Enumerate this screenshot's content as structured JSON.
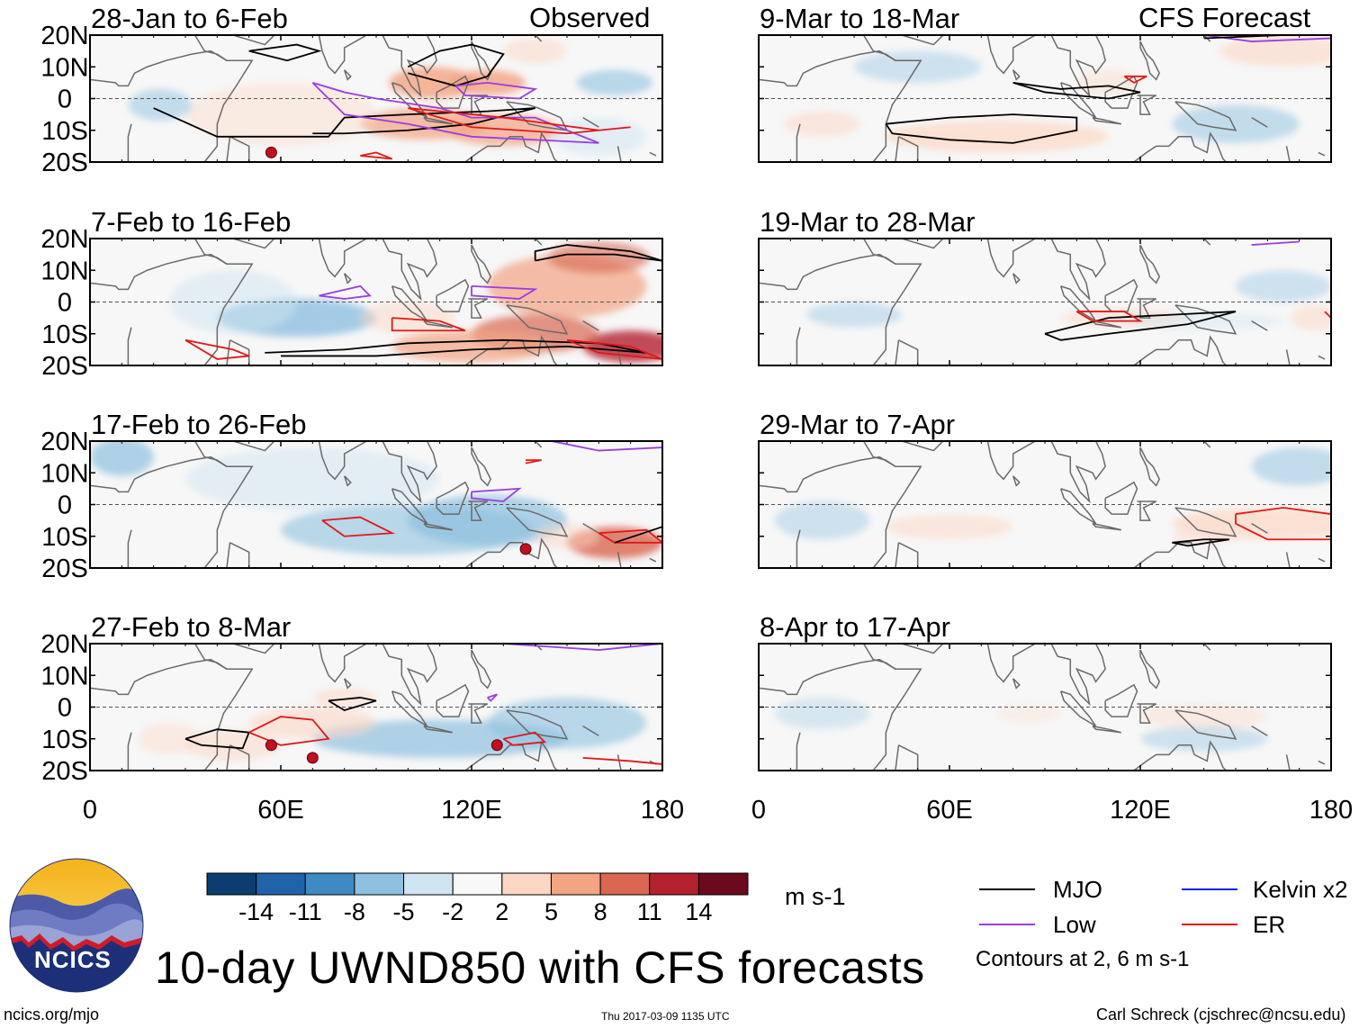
{
  "colors": {
    "mjo": "#000000",
    "low": "#9a3ee0",
    "kelvin": "#1a1aff",
    "er": "#e01818",
    "coast": "#6a6a6a"
  },
  "header": {
    "observed_label": "Observed",
    "forecast_label": "CFS Forecast"
  },
  "chart_data": [
    {
      "type": "heatmap",
      "title": "28-Jan to 6-Feb",
      "group": "Observed",
      "xlim": [
        0,
        180
      ],
      "ylim": [
        -20,
        20
      ],
      "xticks": [
        "0",
        "60E",
        "120E",
        "180"
      ],
      "yticks": [
        "20N",
        "10N",
        "0",
        "10S",
        "20S"
      ]
    },
    {
      "type": "heatmap",
      "title": "7-Feb to 16-Feb",
      "group": "Observed",
      "xlim": [
        0,
        180
      ],
      "ylim": [
        -20,
        20
      ],
      "xticks": [
        "0",
        "60E",
        "120E",
        "180"
      ],
      "yticks": [
        "20N",
        "10N",
        "0",
        "10S",
        "20S"
      ]
    },
    {
      "type": "heatmap",
      "title": "17-Feb to 26-Feb",
      "group": "Observed",
      "xlim": [
        0,
        180
      ],
      "ylim": [
        -20,
        20
      ],
      "xticks": [
        "0",
        "60E",
        "120E",
        "180"
      ],
      "yticks": [
        "20N",
        "10N",
        "0",
        "10S",
        "20S"
      ]
    },
    {
      "type": "heatmap",
      "title": "27-Feb to 8-Mar",
      "group": "Observed",
      "xlim": [
        0,
        180
      ],
      "ylim": [
        -20,
        20
      ],
      "xticks": [
        "0",
        "60E",
        "120E",
        "180"
      ],
      "yticks": [
        "20N",
        "10N",
        "0",
        "10S",
        "20S"
      ]
    },
    {
      "type": "heatmap",
      "title": "9-Mar to 18-Mar",
      "group": "CFS Forecast",
      "xlim": [
        0,
        180
      ],
      "ylim": [
        -20,
        20
      ],
      "xticks": [
        "0",
        "60E",
        "120E",
        "180"
      ],
      "yticks": [
        "20N",
        "10N",
        "0",
        "10S",
        "20S"
      ]
    },
    {
      "type": "heatmap",
      "title": "19-Mar to 28-Mar",
      "group": "CFS Forecast",
      "xlim": [
        0,
        180
      ],
      "ylim": [
        -20,
        20
      ],
      "xticks": [
        "0",
        "60E",
        "120E",
        "180"
      ],
      "yticks": [
        "20N",
        "10N",
        "0",
        "10S",
        "20S"
      ]
    },
    {
      "type": "heatmap",
      "title": "29-Mar to 7-Apr",
      "group": "CFS Forecast",
      "xlim": [
        0,
        180
      ],
      "ylim": [
        -20,
        20
      ],
      "xticks": [
        "0",
        "60E",
        "120E",
        "180"
      ],
      "yticks": [
        "20N",
        "10N",
        "0",
        "10S",
        "20S"
      ]
    },
    {
      "type": "heatmap",
      "title": "8-Apr to 17-Apr",
      "group": "CFS Forecast",
      "xlim": [
        0,
        180
      ],
      "ylim": [
        -20,
        20
      ],
      "xticks": [
        "0",
        "60E",
        "120E",
        "180"
      ],
      "yticks": [
        "20N",
        "10N",
        "0",
        "10S",
        "20S"
      ]
    }
  ],
  "colorbar": {
    "labels": [
      "-14",
      "-11",
      "-8",
      "-5",
      "-2",
      "2",
      "5",
      "8",
      "11",
      "14"
    ],
    "colors": [
      "#0b3d70",
      "#2163a8",
      "#3f8ac4",
      "#8ec1e0",
      "#cfe5f2",
      "#f8f8f8",
      "#fcd7c4",
      "#f2a483",
      "#d96752",
      "#b3212f",
      "#6b0a1d"
    ],
    "units": "m s-1"
  },
  "legend": {
    "mjo": "MJO",
    "low": "Low",
    "kelvin": "Kelvin x2",
    "er": "ER",
    "contours": "Contours at 2, 6 m s-1"
  },
  "footer": {
    "title": "10-day UWND850 with CFS forecasts",
    "url": "ncics.org/mjo",
    "timestamp": "Thu 2017-03-09 1135 UTC",
    "author": "Carl Schreck (cjschrec@ncsu.edu)",
    "logo_text": "NCICS"
  }
}
